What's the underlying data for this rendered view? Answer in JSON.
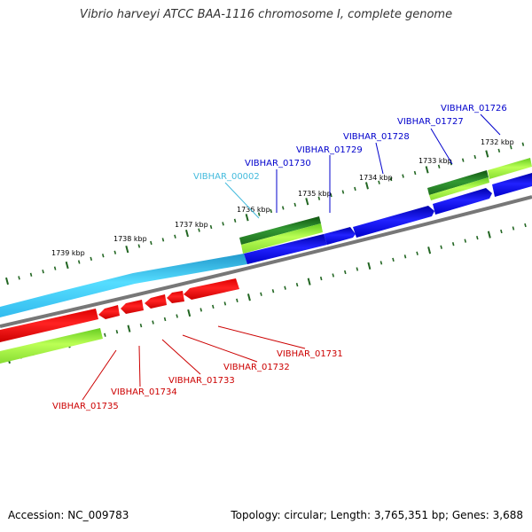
{
  "title": "Vibrio harveyi ATCC BAA-1116 chromosome I, complete genome",
  "footer": {
    "accession": "Accession: NC_009783",
    "topology": "Topology: circular; Length: 3,765,351 bp; Genes: 3,688"
  },
  "colors": {
    "forward_cds": "#0000ee",
    "forward_label": "#0000cc",
    "reverse_cds": "#ee0000",
    "reverse_label": "#cc0000",
    "other_feature": "#44ccee",
    "other_label": "#44bbdd",
    "gc_content_light": "#99ee33",
    "gc_content_dark": "#226622",
    "backbone": "#777777",
    "tick": "#226622"
  },
  "ticks": [
    {
      "label": "1732 kbp"
    },
    {
      "label": "1733 kbp"
    },
    {
      "label": "1734 kbp"
    },
    {
      "label": "1735 kbp"
    },
    {
      "label": "1736 kbp"
    },
    {
      "label": "1737 kbp"
    },
    {
      "label": "1738 kbp"
    },
    {
      "label": "1739 kbp"
    }
  ],
  "genes_forward": [
    {
      "label": "VIBHAR_01726",
      "strand": "forward",
      "color": "#0000cc"
    },
    {
      "label": "VIBHAR_01727",
      "strand": "forward",
      "color": "#0000cc"
    },
    {
      "label": "VIBHAR_01728",
      "strand": "forward",
      "color": "#0000cc"
    },
    {
      "label": "VIBHAR_01729",
      "strand": "forward",
      "color": "#0000cc"
    },
    {
      "label": "VIBHAR_01730",
      "strand": "forward",
      "color": "#0000cc"
    },
    {
      "label": "VIBHAR_00002",
      "strand": "forward",
      "color": "#44bbdd"
    }
  ],
  "genes_reverse": [
    {
      "label": "VIBHAR_01731",
      "strand": "reverse",
      "color": "#cc0000"
    },
    {
      "label": "VIBHAR_01732",
      "strand": "reverse",
      "color": "#cc0000"
    },
    {
      "label": "VIBHAR_01733",
      "strand": "reverse",
      "color": "#cc0000"
    },
    {
      "label": "VIBHAR_01734",
      "strand": "reverse",
      "color": "#cc0000"
    },
    {
      "label": "VIBHAR_01735",
      "strand": "reverse",
      "color": "#cc0000"
    }
  ]
}
